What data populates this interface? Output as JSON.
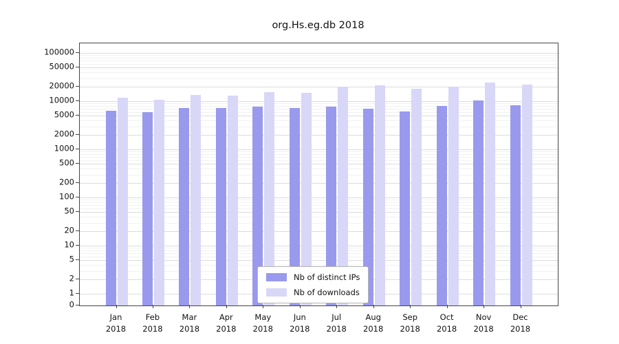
{
  "chart_data": {
    "type": "bar",
    "title": "org.Hs.eg.db 2018",
    "y_scale": "log",
    "ylim": [
      0,
      100000
    ],
    "grid": true,
    "legend_position": "bottom-center-inside",
    "categories": [
      "Jan 2018",
      "Feb 2018",
      "Mar 2018",
      "Apr 2018",
      "May 2018",
      "Jun 2018",
      "Jul 2018",
      "Aug 2018",
      "Sep 2018",
      "Oct 2018",
      "Nov 2018",
      "Dec 2018"
    ],
    "y_ticks": [
      0,
      1,
      2,
      5,
      10,
      20,
      50,
      100,
      200,
      500,
      1000,
      2000,
      5000,
      10000,
      20000,
      50000,
      100000
    ],
    "series": [
      {
        "name": "Nb of distinct IPs",
        "color": "#9999ee",
        "values": [
          6300,
          5900,
          7100,
          7100,
          7800,
          7100,
          7800,
          6900,
          6200,
          8000,
          10300,
          8200
        ]
      },
      {
        "name": "Nb of downloads",
        "color": "#d8d7f8",
        "values": [
          11800,
          10600,
          13500,
          13000,
          15500,
          15000,
          20000,
          21500,
          18000,
          20000,
          24500,
          22000
        ]
      }
    ]
  }
}
